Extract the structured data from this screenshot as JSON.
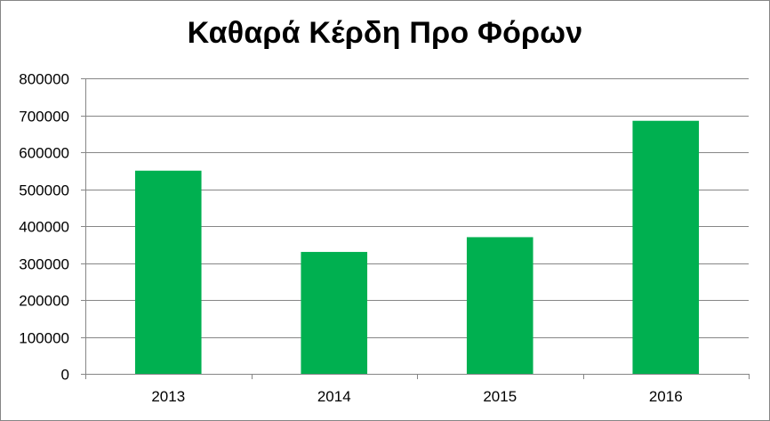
{
  "chart_data": {
    "type": "bar",
    "title": "Καθαρά Κέρδη Προ Φόρων",
    "xlabel": "",
    "ylabel": "",
    "categories": [
      "2013",
      "2014",
      "2015",
      "2016"
    ],
    "values": [
      550000,
      330000,
      370000,
      685000
    ],
    "ylim": [
      0,
      800000
    ],
    "yticks": [
      "0",
      "100000",
      "200000",
      "300000",
      "400000",
      "500000",
      "600000",
      "700000",
      "800000"
    ],
    "grid": true,
    "legend": "none",
    "bar_color": "#00B050",
    "gridline_color": "#868686"
  }
}
